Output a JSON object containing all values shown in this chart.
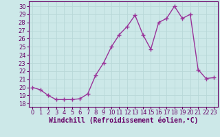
{
  "x": [
    0,
    1,
    2,
    3,
    4,
    5,
    6,
    7,
    8,
    9,
    10,
    11,
    12,
    13,
    14,
    15,
    16,
    17,
    18,
    19,
    20,
    21,
    22,
    23
  ],
  "y": [
    20.0,
    19.7,
    19.0,
    18.5,
    18.5,
    18.5,
    18.6,
    19.2,
    21.5,
    23.0,
    25.0,
    26.5,
    27.5,
    28.9,
    26.5,
    24.7,
    28.0,
    28.5,
    30.0,
    28.5,
    29.0,
    22.2,
    21.1,
    21.2
  ],
  "line_color": "#993399",
  "marker": "+",
  "marker_size": 4,
  "linewidth": 1.0,
  "bg_color": "#cce8e8",
  "grid_color": "#b8d8d8",
  "xlabel": "Windchill (Refroidissement éolien,°C)",
  "ylabel_ticks": [
    18,
    19,
    20,
    21,
    22,
    23,
    24,
    25,
    26,
    27,
    28,
    29,
    30
  ],
  "ylim": [
    17.6,
    30.6
  ],
  "xlim": [
    -0.5,
    23.5
  ],
  "xticks": [
    0,
    1,
    2,
    3,
    4,
    5,
    6,
    7,
    8,
    9,
    10,
    11,
    12,
    13,
    14,
    15,
    16,
    17,
    18,
    19,
    20,
    21,
    22,
    23
  ],
  "tick_fontsize": 6.0,
  "xlabel_fontsize": 7.0,
  "tick_color": "#660066",
  "xlabel_color": "#660066",
  "spine_color": "#660066"
}
